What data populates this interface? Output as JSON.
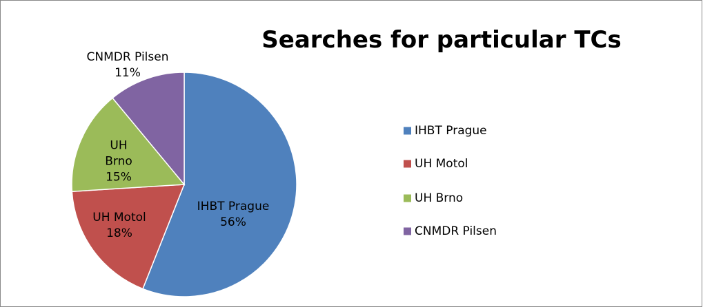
{
  "chart_data": {
    "type": "pie",
    "title": "Searches for particular TCs",
    "categories": [
      "IHBT Prague",
      "UH Motol",
      "UH Brno",
      "CNMDR Pilsen"
    ],
    "values": [
      56,
      18,
      15,
      11
    ],
    "value_labels": [
      "56%",
      "18%",
      "15%",
      "11%"
    ],
    "colors": [
      "#4f81bd",
      "#c0504d",
      "#9bbb59",
      "#8064a2"
    ],
    "legend": "right"
  }
}
